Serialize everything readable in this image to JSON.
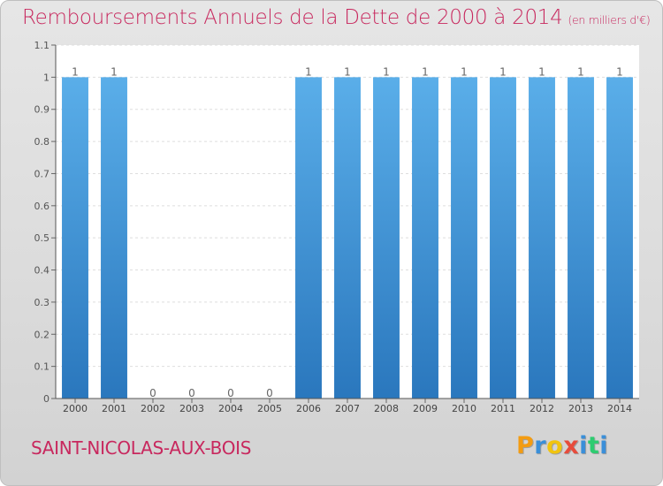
{
  "header": {
    "title": "Remboursements Annuels de la Dette de 2000 à 2014",
    "unit": "(en milliers d'€)"
  },
  "footer": {
    "commune": "SAINT-NICOLAS-AUX-BOIS",
    "brand_letters": [
      "P",
      "r",
      "o",
      "x",
      "i",
      "t",
      "i"
    ],
    "brand_colors": [
      "#f39c12",
      "#3a8fd9",
      "#f1c40f",
      "#e74c3c",
      "#3a8fd9",
      "#2ecc71",
      "#3a8fd9"
    ]
  },
  "colors": {
    "title": "#c8285e",
    "bar_top": "#5aaee9",
    "bar_bottom": "#2a77bd",
    "plot_bg": "#ffffff",
    "grid": "#dedede"
  },
  "chart_data": {
    "type": "bar",
    "title": "Remboursements Annuels de la Dette de 2000 à 2014",
    "categories": [
      "2000",
      "2001",
      "2002",
      "2003",
      "2004",
      "2005",
      "2006",
      "2007",
      "2008",
      "2009",
      "2010",
      "2011",
      "2012",
      "2013",
      "2014"
    ],
    "values": [
      1,
      1,
      0,
      0,
      0,
      0,
      1,
      1,
      1,
      1,
      1,
      1,
      1,
      1,
      1
    ],
    "data_labels": [
      "1",
      "1",
      "0",
      "0",
      "0",
      "0",
      "1",
      "1",
      "1",
      "1",
      "1",
      "1",
      "1",
      "1",
      "1"
    ],
    "ylim": [
      0,
      1.1
    ],
    "yticks": [
      0,
      0.1,
      0.2,
      0.3,
      0.4,
      0.5,
      0.6,
      0.7,
      0.8,
      0.9,
      1,
      1.1
    ],
    "ytick_labels": [
      "0",
      "0.1",
      "0.2",
      "0.3",
      "0.4",
      "0.5",
      "0.6",
      "0.7",
      "0.8",
      "0.9",
      "1",
      "1.1"
    ],
    "grid": true
  }
}
